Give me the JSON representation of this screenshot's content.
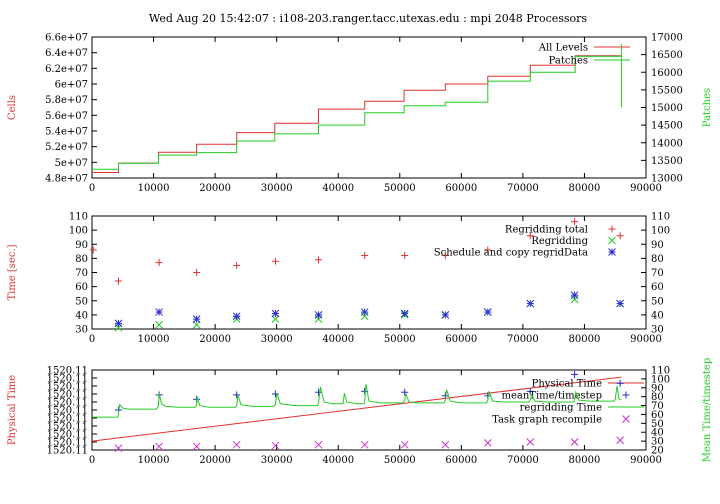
{
  "title": "Wed Aug 20 15:42:07 : i108-203.ranger.tacc.utexas.edu : mpi 2048 Processors",
  "colors": {
    "red": "#e03030",
    "green": "#22cc22",
    "blue": "#2a2ad0",
    "magenta": "#d030d0",
    "axis": "#000000"
  },
  "chart_data": [
    {
      "type": "line",
      "ylabel": "Cells",
      "y2label": "Patches",
      "xlim": [
        0,
        90000
      ],
      "xticks": [
        0,
        10000,
        20000,
        30000,
        40000,
        50000,
        60000,
        70000,
        80000,
        90000
      ],
      "ylim": [
        48000000,
        66000000
      ],
      "yticks": [
        48000000,
        50000000,
        52000000,
        54000000,
        56000000,
        58000000,
        60000000,
        62000000,
        64000000,
        66000000
      ],
      "ytick_labels": [
        "4.8e+07",
        "5e+07",
        "5.2e+07",
        "5.4e+07",
        "5.6e+07",
        "5.8e+07",
        "6e+07",
        "6.2e+07",
        "6.4e+07",
        "6.6e+07"
      ],
      "y2lim": [
        13000,
        17000
      ],
      "y2ticks": [
        13000,
        13500,
        14000,
        14500,
        15000,
        15500,
        16000,
        16500,
        17000
      ],
      "legend": "top-right",
      "series": [
        {
          "name": "All Levels",
          "color": "#e03030",
          "axis": "left",
          "style": "step",
          "x": [
            0,
            4300,
            4300,
            10800,
            10800,
            17000,
            17000,
            23500,
            23500,
            29700,
            29700,
            36800,
            36800,
            44300,
            44300,
            50700,
            50700,
            57400,
            57400,
            64300,
            64300,
            71200,
            71200,
            78500,
            78500,
            86000
          ],
          "y": [
            48700000,
            48700000,
            49900000,
            49900000,
            51300000,
            51300000,
            52300000,
            52300000,
            53800000,
            53800000,
            55000000,
            55000000,
            56800000,
            56800000,
            57800000,
            57800000,
            59200000,
            59200000,
            60000000,
            60000000,
            61000000,
            61000000,
            62400000,
            62400000,
            63600000,
            63600000
          ]
        },
        {
          "name": "Patches",
          "color": "#22cc22",
          "axis": "right",
          "style": "step",
          "x": [
            0,
            4300,
            4300,
            10800,
            10800,
            17000,
            17000,
            23500,
            23500,
            29700,
            29700,
            36800,
            36800,
            44300,
            44300,
            50700,
            50700,
            57400,
            57400,
            64300,
            64300,
            71200,
            71200,
            78500,
            78500,
            86000,
            86000,
            86000
          ],
          "y": [
            13250,
            13250,
            13420,
            13420,
            13650,
            13650,
            13720,
            13720,
            14050,
            14050,
            14250,
            14250,
            14500,
            14500,
            14850,
            14850,
            15050,
            15050,
            15150,
            15150,
            15750,
            15750,
            16000,
            16000,
            16450,
            16450,
            16800,
            15000
          ]
        }
      ]
    },
    {
      "type": "scatter",
      "ylabel": "Time [sec.]",
      "xlim": [
        0,
        90000
      ],
      "xticks": [
        0,
        10000,
        20000,
        30000,
        40000,
        50000,
        60000,
        70000,
        80000,
        90000
      ],
      "ylim": [
        30,
        110
      ],
      "yticks": [
        30,
        40,
        50,
        60,
        70,
        80,
        90,
        100,
        110
      ],
      "y2lim": [
        30,
        110
      ],
      "y2ticks": [
        30,
        40,
        50,
        60,
        70,
        80,
        90,
        100,
        110
      ],
      "legend": "top-right",
      "series": [
        {
          "name": "Regridding total",
          "marker": "plus",
          "color": "#e03030",
          "x": [
            200,
            4300,
            10900,
            17000,
            23500,
            29800,
            36800,
            44300,
            50800,
            57400,
            64300,
            71200,
            78400,
            85800
          ],
          "y": [
            86,
            64,
            77,
            70,
            75,
            78,
            79,
            82,
            82,
            82,
            86,
            96,
            106,
            96
          ]
        },
        {
          "name": "Regridding",
          "marker": "cross",
          "color": "#22cc22",
          "x": [
            4300,
            10900,
            17000,
            23500,
            29800,
            36800,
            44300,
            50800,
            57400,
            64300,
            71200,
            78400,
            85800
          ],
          "y": [
            31,
            33,
            33,
            37,
            37,
            37,
            39,
            40,
            40,
            42,
            48,
            51,
            48
          ]
        },
        {
          "name": "Schedule and copy regridData",
          "marker": "star",
          "color": "#2a2ad0",
          "x": [
            4300,
            10900,
            17000,
            23500,
            29800,
            36800,
            44300,
            50800,
            57400,
            64300,
            71200,
            78400,
            85800
          ],
          "y": [
            34,
            42,
            37,
            39,
            41,
            40,
            42,
            41,
            40,
            42,
            48,
            54,
            48
          ]
        }
      ]
    },
    {
      "type": "line",
      "ylabel": "Physical Time",
      "y2label": "Mean Time/timestep",
      "xlim": [
        0,
        90000
      ],
      "xticks": [
        0,
        10000,
        20000,
        30000,
        40000,
        50000,
        60000,
        70000,
        80000,
        90000
      ],
      "yticks": [
        0,
        1,
        2,
        3,
        4,
        5,
        6,
        7,
        8,
        9,
        10
      ],
      "ytick_labels": [
        "1520.11",
        "1520.11",
        "1520.11",
        "1520.11",
        "1520.11",
        "1520.11",
        "1520.11",
        "1520.11",
        "1520.11",
        "1520.11",
        "1520.11"
      ],
      "y2lim": [
        20,
        110
      ],
      "y2ticks": [
        20,
        30,
        40,
        50,
        60,
        70,
        80,
        90,
        100,
        110
      ],
      "legend": "top-right",
      "series": [
        {
          "name": "Physical Time",
          "color": "#e03030",
          "axis": "right",
          "style": "line",
          "x": [
            0,
            86000
          ],
          "y": [
            30,
            102
          ]
        },
        {
          "name": "meanTime/timestep",
          "color": "#2a2ad0",
          "axis": "right",
          "marker": "plus",
          "x": [
            4300,
            10900,
            17000,
            23500,
            29800,
            36800,
            44300,
            50800,
            57400,
            64300,
            71200,
            78400,
            85800
          ],
          "y": [
            65,
            82,
            77,
            82,
            83,
            85,
            86,
            85,
            81,
            81,
            86,
            105,
            95
          ]
        },
        {
          "name": "regridding Time",
          "color": "#22cc22",
          "axis": "right",
          "style": "line",
          "x": [
            0,
            4200,
            4300,
            4500,
            5000,
            6000,
            8000,
            10500,
            10800,
            10900,
            11300,
            12000,
            14000,
            16800,
            17000,
            17100,
            17500,
            19000,
            23300,
            23500,
            23700,
            24200,
            26000,
            29500,
            29800,
            30000,
            30600,
            33000,
            36600,
            36800,
            37100,
            37700,
            39000,
            40800,
            41000,
            41400,
            43000,
            44200,
            44300,
            44500,
            45000,
            47000,
            50500,
            50800,
            51000,
            51500,
            53000,
            57200,
            57400,
            57600,
            58200,
            60000,
            64100,
            64300,
            64500,
            65100,
            67000,
            71000,
            71200,
            71400,
            72000,
            74000,
            78200,
            78400,
            78600,
            79100,
            81000,
            84800,
            85000,
            85300,
            85600,
            86000
          ],
          "y": [
            57,
            57,
            62,
            71,
            67,
            66,
            66,
            66,
            70,
            84,
            72,
            69,
            68,
            68,
            70,
            80,
            70,
            68,
            68,
            70,
            82,
            71,
            69,
            69,
            71,
            84,
            72,
            70,
            70,
            72,
            91,
            74,
            72,
            72,
            84,
            74,
            72,
            72,
            74,
            94,
            75,
            73,
            73,
            76,
            83,
            74,
            73,
            73,
            76,
            88,
            75,
            73,
            73,
            76,
            86,
            75,
            74,
            74,
            76,
            82,
            75,
            74,
            74,
            76,
            85,
            76,
            75,
            75,
            77,
            92,
            78,
            76
          ]
        },
        {
          "name": "Task graph recompile",
          "color": "#d030d0",
          "axis": "right",
          "marker": "cross",
          "x": [
            4300,
            10900,
            17000,
            23500,
            29800,
            36800,
            44300,
            50800,
            57400,
            64300,
            71200,
            78400,
            85800
          ],
          "y": [
            22,
            24,
            24,
            26,
            25,
            26,
            26,
            26,
            26,
            28,
            29,
            29,
            31
          ]
        }
      ]
    }
  ]
}
